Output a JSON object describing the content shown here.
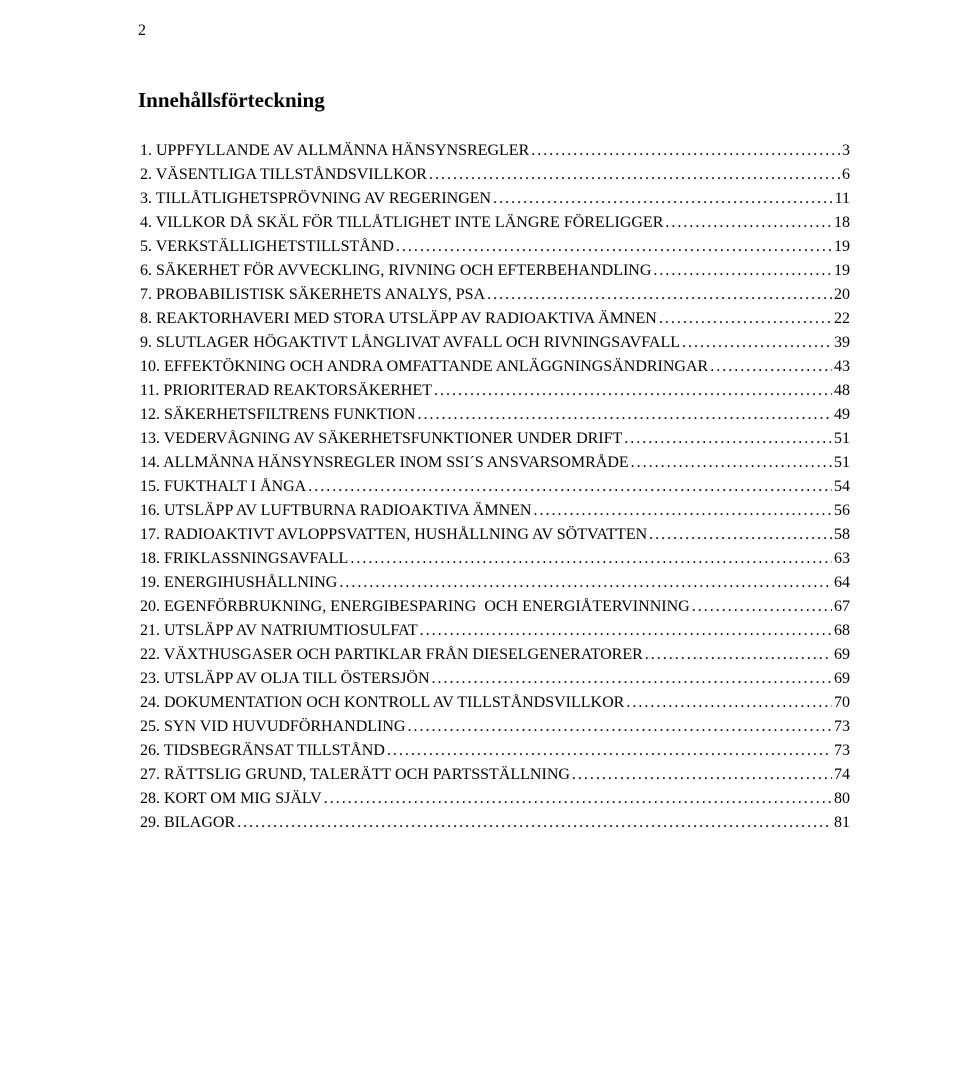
{
  "page_number": "2",
  "title": "Innehållsförteckning",
  "entries": [
    {
      "label": "1. UPPFYLLANDE AV ALLMÄNNA HÄNSYNSREGLER",
      "page": "3"
    },
    {
      "label": "2. VÄSENTLIGA TILLSTÅNDSVILLKOR",
      "page": "6"
    },
    {
      "label": "3. TILLÅTLIGHETSPRÖVNING AV REGERINGEN",
      "page": "11"
    },
    {
      "label": "4. VILLKOR DÅ SKÄL FÖR TILLÅTLIGHET INTE LÄNGRE FÖRELIGGER",
      "page": "18"
    },
    {
      "label": "5. VERKSTÄLLIGHETSTILLSTÅND",
      "page": "19"
    },
    {
      "label": "6. SÄKERHET FÖR AVVECKLING, RIVNING OCH EFTERBEHANDLING",
      "page": "19"
    },
    {
      "label": "7. PROBABILISTISK SÄKERHETS ANALYS, PSA",
      "page": "20"
    },
    {
      "label": "8. REAKTORHAVERI MED STORA UTSLÄPP AV RADIOAKTIVA ÄMNEN",
      "page": "22"
    },
    {
      "label": "9. SLUTLAGER HÖGAKTIVT LÅNGLIVAT AVFALL OCH RIVNINGSAVFALL",
      "page": "39"
    },
    {
      "label": "10. EFFEKTÖKNING OCH ANDRA OMFATTANDE ANLÄGGNINGSÄNDRINGAR",
      "page": "43"
    },
    {
      "label": "11. PRIORITERAD REAKTORSÄKERHET",
      "page": "48"
    },
    {
      "label": "12. SÄKERHETSFILTRENS FUNKTION",
      "page": "49"
    },
    {
      "label": "13. VEDERVÅGNING AV SÄKERHETSFUNKTIONER UNDER DRIFT",
      "page": "51"
    },
    {
      "label": "14. ALLMÄNNA HÄNSYNSREGLER INOM SSI´S ANSVARSOMRÅDE",
      "page": "51"
    },
    {
      "label": "15. FUKTHALT I ÅNGA",
      "page": "54"
    },
    {
      "label": "16. UTSLÄPP AV LUFTBURNA RADIOAKTIVA ÄMNEN",
      "page": "56"
    },
    {
      "label": "17. RADIOAKTIVT AVLOPPSVATTEN, HUSHÅLLNING AV SÖTVATTEN",
      "page": "58"
    },
    {
      "label": "18. FRIKLASSNINGSAVFALL",
      "page": "63"
    },
    {
      "label": "19. ENERGIHUSHÅLLNING",
      "page": "64"
    },
    {
      "label": "20. EGENFÖRBRUKNING, ENERGIBESPARING  OCH ENERGIÅTERVINNING",
      "page": "67"
    },
    {
      "label": "21. UTSLÄPP AV NATRIUMTIOSULFAT",
      "page": "68"
    },
    {
      "label": "22. VÄXTHUSGASER OCH PARTIKLAR FRÅN DIESELGENERATORER",
      "page": "69"
    },
    {
      "label": "23. UTSLÄPP AV OLJA TILL ÖSTERSJÖN",
      "page": "69"
    },
    {
      "label": "24. DOKUMENTATION OCH KONTROLL AV TILLSTÅNDSVILLKOR",
      "page": "70"
    },
    {
      "label": "25. SYN VID HUVUDFÖRHANDLING",
      "page": "73"
    },
    {
      "label": "26. TIDSBEGRÄNSAT TILLSTÅND",
      "page": "73"
    },
    {
      "label": "27. RÄTTSLIG GRUND, TALERÄTT OCH PARTSSTÄLLNING",
      "page": "74"
    },
    {
      "label": "28. KORT OM MIG SJÄLV",
      "page": "80"
    },
    {
      "label": "29. BILAGOR",
      "page": "81"
    }
  ]
}
